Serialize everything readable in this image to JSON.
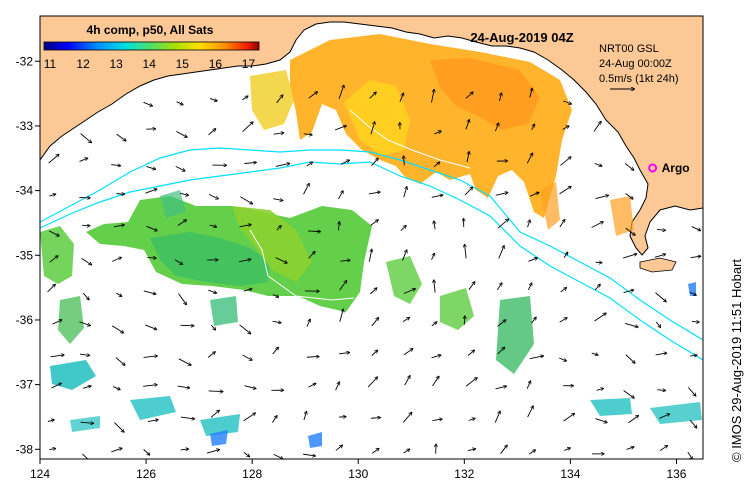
{
  "title": "4h comp, p50, All Sats",
  "date_label": "24-Aug-2019 04Z",
  "currents_info": {
    "line1": "NRT00 GSL",
    "line2": "24-Aug 00:00Z",
    "line3": "0.5m/s (1kt 24h)"
  },
  "marker": {
    "label": "Argo",
    "lon": 135.55,
    "lat": -33.65,
    "color": "#ff00ff"
  },
  "credit": "© IMOS 29-Aug-2019 11:51 Hobart",
  "colorbar": {
    "ticks": [
      "11",
      "12",
      "13",
      "14",
      "15",
      "16",
      "17"
    ],
    "min": 11,
    "max": 17.5,
    "colors": [
      "#00007f",
      "#0000ff",
      "#0080ff",
      "#00ffff",
      "#40ff80",
      "#80ff00",
      "#ffff00",
      "#ff8000",
      "#ff0000",
      "#800000"
    ]
  },
  "axes": {
    "x_ticks": [
      "124",
      "126",
      "128",
      "130",
      "132",
      "134",
      "136"
    ],
    "y_ticks": [
      "-32",
      "-33",
      "-34",
      "-35",
      "-36",
      "-37",
      "-38"
    ],
    "lon_range": [
      124,
      136.5
    ],
    "lat_range": [
      -38.15,
      -31.3
    ]
  },
  "colors": {
    "land": "#fbc896",
    "sst_warm": "#ffa020",
    "sst_mid": "#ffcc10",
    "sst_green": "#5ccc40",
    "sst_cyan": "#20c0c0",
    "isobath": "#00e0ff"
  }
}
